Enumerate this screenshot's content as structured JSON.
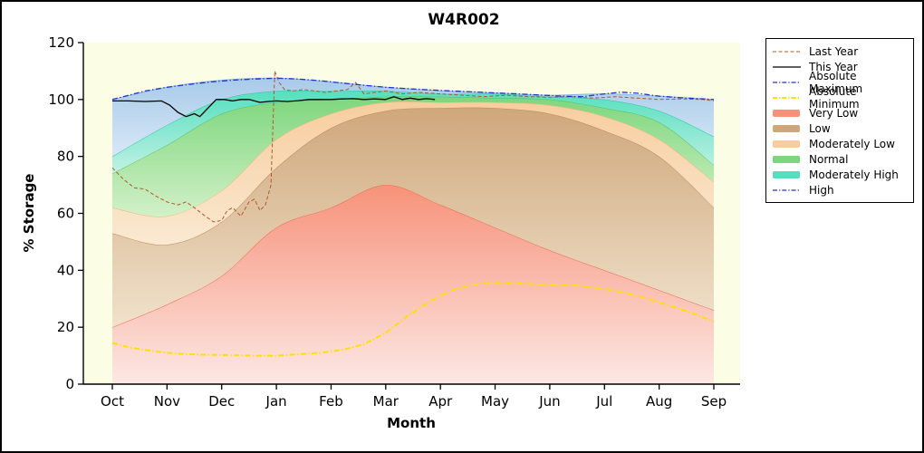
{
  "chart_data": {
    "type": "area",
    "title": "W4R002",
    "xlabel": "Month",
    "ylabel": "% Storage",
    "x_categories": [
      "Oct",
      "Nov",
      "Dec",
      "Jan",
      "Feb",
      "Mar",
      "Apr",
      "May",
      "Jun",
      "Jul",
      "Aug",
      "Sep"
    ],
    "ylim": [
      0,
      120
    ],
    "yticks": [
      0,
      20,
      40,
      60,
      80,
      100,
      120
    ],
    "plot_background": "#FBFDE4",
    "grid": false,
    "legend_position": "outside-top-right",
    "bands": [
      {
        "name": "Very Low",
        "color": "#F7927A",
        "color_light": "#FCE8E4",
        "edge": "#F0694C",
        "upper": [
          20,
          28,
          38,
          55,
          62,
          70,
          63,
          55,
          47,
          40,
          33,
          26
        ]
      },
      {
        "name": "Low",
        "color": "#CFA77B",
        "color_light": "#F0E2CC",
        "edge": "#B98B5E",
        "upper": [
          53,
          49,
          57,
          76,
          90,
          96,
          97,
          97,
          95,
          89,
          80,
          62
        ]
      },
      {
        "name": "Moderately Low",
        "color": "#F7CD9E",
        "color_light": "#FAE9D2",
        "edge": "#F0B97F",
        "upper": [
          62,
          59,
          68,
          86,
          95,
          99,
          99,
          99,
          98,
          94,
          86,
          71
        ]
      },
      {
        "name": "Normal",
        "color": "#7ED67E",
        "color_light": "#D2F1C8",
        "edge": "#59C159",
        "upper": [
          74,
          84,
          95,
          99,
          100,
          101,
          101,
          100.5,
          100,
          97,
          92,
          77
        ]
      },
      {
        "name": "Moderately High",
        "color": "#55DFBE",
        "color_light": "#C2F1E5",
        "edge": "#2AC9A5",
        "upper": [
          80,
          91,
          100,
          103,
          103,
          103,
          102,
          102,
          101,
          100,
          96,
          87
        ]
      },
      {
        "name": "High",
        "color": "#A8CAEA",
        "color_light": "#D8E8F6",
        "edge": "#8FB4DC",
        "upper": [
          100,
          104.3,
          106.8,
          107.5,
          106.2,
          104.3,
          103.1,
          102.3,
          101.5,
          102,
          101.2,
          100
        ]
      }
    ],
    "lines": [
      {
        "name": "Last Year",
        "color": "#B4562A",
        "style": "dashed",
        "width": 1,
        "points": [
          [
            0,
            76
          ],
          [
            0.2,
            72
          ],
          [
            0.4,
            69
          ],
          [
            0.6,
            68.5
          ],
          [
            0.8,
            66
          ],
          [
            1,
            64
          ],
          [
            1.2,
            63
          ],
          [
            1.35,
            64
          ],
          [
            1.5,
            62
          ],
          [
            1.7,
            59
          ],
          [
            1.85,
            57
          ],
          [
            2,
            57.5
          ],
          [
            2.1,
            61
          ],
          [
            2.2,
            62
          ],
          [
            2.35,
            59
          ],
          [
            2.5,
            64
          ],
          [
            2.6,
            65
          ],
          [
            2.7,
            61
          ],
          [
            2.8,
            63
          ],
          [
            2.9,
            70
          ],
          [
            2.97,
            110
          ],
          [
            3.05,
            106
          ],
          [
            3.15,
            103.5
          ],
          [
            3.3,
            103
          ],
          [
            3.5,
            103.5
          ],
          [
            3.7,
            103
          ],
          [
            3.9,
            102.5
          ],
          [
            4.1,
            103
          ],
          [
            4.3,
            103.5
          ],
          [
            4.45,
            106
          ],
          [
            4.6,
            102
          ],
          [
            4.8,
            102.5
          ],
          [
            5,
            103
          ],
          [
            5.3,
            102
          ],
          [
            5.6,
            102.5
          ],
          [
            6,
            102
          ],
          [
            6.4,
            101.5
          ],
          [
            6.8,
            101
          ],
          [
            7.2,
            101.5
          ],
          [
            7.6,
            101
          ],
          [
            8,
            100.8
          ],
          [
            8.4,
            101
          ],
          [
            8.8,
            100.5
          ],
          [
            9.2,
            101
          ],
          [
            9.6,
            100.5
          ],
          [
            10,
            100
          ],
          [
            10.4,
            100.2
          ],
          [
            10.8,
            100
          ],
          [
            11,
            99.5
          ]
        ]
      },
      {
        "name": "This Year",
        "color": "#000000",
        "style": "solid",
        "width": 1.3,
        "points": [
          [
            0,
            99.5
          ],
          [
            0.3,
            99.5
          ],
          [
            0.6,
            99.3
          ],
          [
            0.9,
            99.5
          ],
          [
            1.05,
            98
          ],
          [
            1.2,
            95.5
          ],
          [
            1.35,
            94
          ],
          [
            1.5,
            95
          ],
          [
            1.6,
            94
          ],
          [
            1.75,
            97
          ],
          [
            1.9,
            100
          ],
          [
            2.05,
            100
          ],
          [
            2.2,
            99.5
          ],
          [
            2.35,
            100
          ],
          [
            2.5,
            100
          ],
          [
            2.7,
            99
          ],
          [
            2.85,
            99.3
          ],
          [
            3,
            99.5
          ],
          [
            3.2,
            99.3
          ],
          [
            3.4,
            99.6
          ],
          [
            3.6,
            100
          ],
          [
            3.8,
            100
          ],
          [
            4,
            100
          ],
          [
            4.2,
            100.2
          ],
          [
            4.4,
            100.3
          ],
          [
            4.6,
            100
          ],
          [
            4.8,
            100.2
          ],
          [
            5,
            100
          ],
          [
            5.15,
            101
          ],
          [
            5.3,
            100
          ],
          [
            5.45,
            100.5
          ],
          [
            5.6,
            100
          ],
          [
            5.75,
            100.3
          ],
          [
            5.9,
            100
          ]
        ]
      },
      {
        "name": "Absolute Maximum",
        "color": "#2036C8",
        "style": "dashdot",
        "width": 1.3,
        "points": [
          [
            0,
            100
          ],
          [
            0.3,
            101.5
          ],
          [
            0.6,
            103
          ],
          [
            1,
            104.3
          ],
          [
            1.4,
            105.3
          ],
          [
            1.8,
            106.2
          ],
          [
            2.2,
            106.8
          ],
          [
            2.6,
            107.2
          ],
          [
            3,
            107.5
          ],
          [
            3.4,
            107.2
          ],
          [
            3.8,
            106.6
          ],
          [
            4.2,
            105.8
          ],
          [
            4.6,
            105
          ],
          [
            5,
            104.3
          ],
          [
            5.4,
            103.8
          ],
          [
            5.8,
            103.4
          ],
          [
            6.2,
            103
          ],
          [
            6.6,
            102.7
          ],
          [
            7,
            102.3
          ],
          [
            7.4,
            102
          ],
          [
            7.8,
            101.6
          ],
          [
            8.2,
            101.2
          ],
          [
            8.6,
            101
          ],
          [
            9,
            102
          ],
          [
            9.3,
            102.6
          ],
          [
            9.6,
            102.2
          ],
          [
            10,
            101.2
          ],
          [
            10.4,
            100.6
          ],
          [
            10.8,
            100.2
          ],
          [
            11,
            100
          ]
        ]
      },
      {
        "name": "Absolute Minimum",
        "color": "#FFE000",
        "style": "dashdot",
        "width": 2,
        "points": [
          [
            0,
            14.5
          ],
          [
            0.3,
            13
          ],
          [
            0.6,
            12
          ],
          [
            1,
            11
          ],
          [
            1.4,
            10.5
          ],
          [
            1.8,
            10.3
          ],
          [
            2.2,
            10.2
          ],
          [
            2.6,
            10
          ],
          [
            3,
            10
          ],
          [
            3.4,
            10.5
          ],
          [
            3.8,
            11
          ],
          [
            4.2,
            12
          ],
          [
            4.6,
            14
          ],
          [
            5,
            18
          ],
          [
            5.4,
            24
          ],
          [
            5.8,
            29
          ],
          [
            6.2,
            33
          ],
          [
            6.6,
            35
          ],
          [
            7,
            35.5
          ],
          [
            7.4,
            35.5
          ],
          [
            7.8,
            35
          ],
          [
            8.2,
            35
          ],
          [
            8.6,
            34.5
          ],
          [
            9,
            33.5
          ],
          [
            9.4,
            32
          ],
          [
            9.8,
            30
          ],
          [
            10.2,
            27.5
          ],
          [
            10.6,
            25
          ],
          [
            11,
            22
          ]
        ]
      }
    ]
  },
  "legend": {
    "items": [
      {
        "label": "Last Year",
        "swatch": "line",
        "color": "#B4562A",
        "dash": "dashed",
        "width": 1
      },
      {
        "label": "This Year",
        "swatch": "line",
        "color": "#000000",
        "dash": "solid",
        "width": 1.3
      },
      {
        "label": "Absolute Maximum",
        "swatch": "line",
        "color": "#2036C8",
        "dash": "dashdot",
        "width": 1.3
      },
      {
        "label": "Absolute Minimum",
        "swatch": "line",
        "color": "#FFE000",
        "dash": "dashdot",
        "width": 2
      },
      {
        "label": "Very Low",
        "swatch": "patch",
        "color": "#F7927A"
      },
      {
        "label": "Low",
        "swatch": "patch",
        "color": "#CFA77B"
      },
      {
        "label": "Moderately Low",
        "swatch": "patch",
        "color": "#F7CD9E"
      },
      {
        "label": "Normal",
        "swatch": "patch",
        "color": "#7ED67E"
      },
      {
        "label": "Moderately High",
        "swatch": "patch",
        "color": "#55DFBE"
      },
      {
        "label": "High",
        "swatch": "line",
        "color": "#2036C8",
        "dash": "dashdot",
        "width": 1.3
      }
    ]
  }
}
